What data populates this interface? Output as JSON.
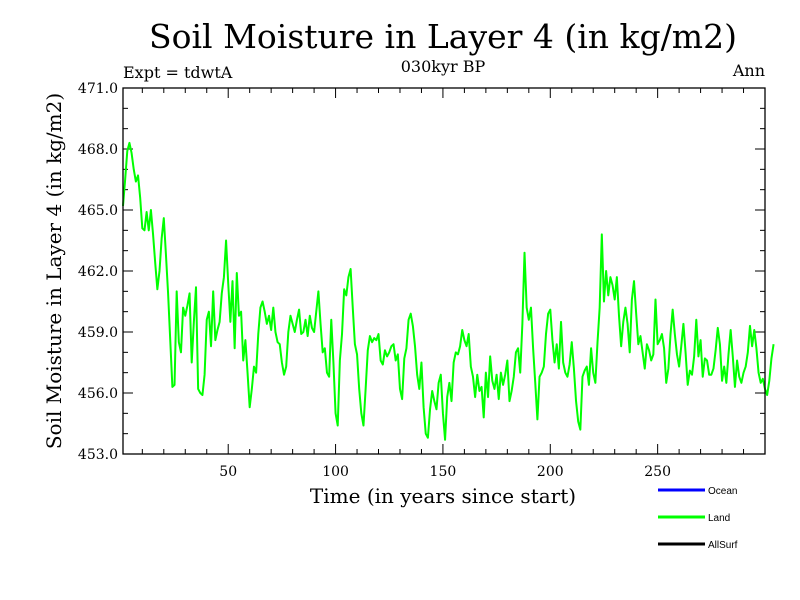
{
  "chart_data": {
    "type": "line",
    "title": "Soil Moisture in Layer 4 (in kg/m2)",
    "subtitle": "030kyr BP",
    "experiment_label": "Expt = tdwtA",
    "season_label": "Ann",
    "xlabel": "Time (in years since start)",
    "ylabel": "Soil Moisture in Layer 4 (in kg/m2)",
    "xlim": [
      1,
      300
    ],
    "ylim": [
      453.0,
      471.0
    ],
    "x_ticks": [
      50,
      100,
      150,
      200,
      250
    ],
    "x_tick_labels": [
      "50",
      "100",
      "150",
      "200",
      "250"
    ],
    "y_ticks": [
      453.0,
      456.0,
      459.0,
      462.0,
      465.0,
      468.0,
      471.0
    ],
    "y_tick_labels": [
      "453.0",
      "456.0",
      "459.0",
      "462.0",
      "465.0",
      "468.0",
      "471.0"
    ],
    "series": [
      {
        "name": "Ocean",
        "color": "#0000ff",
        "values": []
      },
      {
        "name": "Land",
        "color": "#00ff00",
        "x_start": 1,
        "x_step": 1,
        "values": [
          465.2,
          466.5,
          467.9,
          468.3,
          467.8,
          467.0,
          466.4,
          466.7,
          465.6,
          464.1,
          464.0,
          464.9,
          464.0,
          465.0,
          463.8,
          462.4,
          461.1,
          462.0,
          463.6,
          464.6,
          462.8,
          460.9,
          458.6,
          456.3,
          456.4,
          461.0,
          458.5,
          458.0,
          460.2,
          459.8,
          460.3,
          460.9,
          457.5,
          459.5,
          461.2,
          456.2,
          456.0,
          455.9,
          456.9,
          459.6,
          460.0,
          458.3,
          461.0,
          458.6,
          459.1,
          459.5,
          460.9,
          461.7,
          463.5,
          461.4,
          459.5,
          461.5,
          458.2,
          461.9,
          459.8,
          460.0,
          457.6,
          458.6,
          457.0,
          455.3,
          456.2,
          457.3,
          457.0,
          458.9,
          460.2,
          460.5,
          460.0,
          459.4,
          459.8,
          459.1,
          460.2,
          459.0,
          458.5,
          458.4,
          457.5,
          456.9,
          457.3,
          459.0,
          459.8,
          459.4,
          459.0,
          459.6,
          460.1,
          458.9,
          459.0,
          459.6,
          458.8,
          459.8,
          459.2,
          459.0,
          460.0,
          461.0,
          459.4,
          458.0,
          458.2,
          457.0,
          456.8,
          459.6,
          457.5,
          455.0,
          454.4,
          457.6,
          458.9,
          461.1,
          460.8,
          461.7,
          462.1,
          460.2,
          458.4,
          457.9,
          456.2,
          455.0,
          454.4,
          456.2,
          458.1,
          458.8,
          458.5,
          458.7,
          458.6,
          458.9,
          457.6,
          457.4,
          458.1,
          457.8,
          458.0,
          458.3,
          458.4,
          457.6,
          457.9,
          456.2,
          455.7,
          457.7,
          458.2,
          459.6,
          459.9,
          459.3,
          458.3,
          456.9,
          456.2,
          457.5,
          455.3,
          454.0,
          453.8,
          455.2,
          456.1,
          455.6,
          455.2,
          456.5,
          456.9,
          455.0,
          453.7,
          455.8,
          456.5,
          455.6,
          457.5,
          458.0,
          457.9,
          458.3,
          459.1,
          458.6,
          458.3,
          458.9,
          457.3,
          456.8,
          455.8,
          456.9,
          456.1,
          456.3,
          454.8,
          457.0,
          455.8,
          457.8,
          456.6,
          456.2,
          456.9,
          455.7,
          457.0,
          456.4,
          456.9,
          457.6,
          455.6,
          456.1,
          456.8,
          458.0,
          458.2,
          457.0,
          459.4,
          462.9,
          460.2,
          459.6,
          460.2,
          458.2,
          456.5,
          454.7,
          456.8,
          457.0,
          457.3,
          458.9,
          459.9,
          460.1,
          458.6,
          457.5,
          458.4,
          457.2,
          459.5,
          457.5,
          457.0,
          456.8,
          457.4,
          458.5,
          457.2,
          455.6,
          454.6,
          454.2,
          456.8,
          457.1,
          457.3,
          456.4,
          458.2,
          457.0,
          456.5,
          458.5,
          460.2,
          463.8,
          460.5,
          462.0,
          460.8,
          461.7,
          461.3,
          460.6,
          461.7,
          459.8,
          458.3,
          459.5,
          460.2,
          459.4,
          458.0,
          460.6,
          461.5,
          459.9,
          458.4,
          458.8,
          458.0,
          457.2,
          458.4,
          458.1,
          457.6,
          457.9,
          460.6,
          458.4,
          458.6,
          458.9,
          458.2,
          456.5,
          457.2,
          458.9,
          460.1,
          458.9,
          457.9,
          457.3,
          458.3,
          459.4,
          458.0,
          456.4,
          457.1,
          456.9,
          457.8,
          459.6,
          457.8,
          458.6,
          456.8,
          457.7,
          457.6,
          456.9,
          456.9,
          457.2,
          458.1,
          459.2,
          458.4,
          456.6,
          457.3,
          456.5,
          457.9,
          459.1,
          457.8,
          456.3,
          457.6,
          456.8,
          456.5,
          457.0,
          457.3,
          458.0,
          459.3,
          458.3,
          459.1,
          458.2,
          457.0,
          456.5,
          456.7,
          456.2,
          455.9,
          456.6,
          457.7,
          458.4
        ]
      },
      {
        "name": "AllSurf",
        "color": "#000000",
        "values": []
      }
    ],
    "legend_position": "bottom-right",
    "grid": false
  }
}
